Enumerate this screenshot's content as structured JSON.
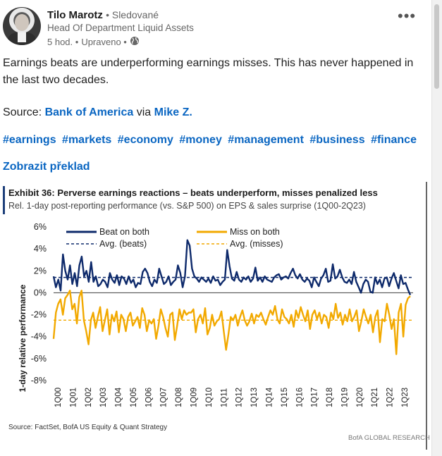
{
  "author": {
    "name": "Tilo Marotz",
    "follow_status": "• Sledované",
    "headline": "Head Of Department Liquid Assets",
    "time": "5 hod. •",
    "edited": "Upraveno •",
    "globe_icon": "globe-icon",
    "more_icon": "more-horizontal-icon"
  },
  "post": {
    "text": "Earnings beats are underperforming earnings misses. This has never happened in the last two decades.",
    "source_prefix": "Source: ",
    "source_link": "Bank of America",
    "via": " via ",
    "via_link": "Mike Z.",
    "hashtags": [
      "#earnings",
      "#markets",
      "#economy",
      "#money",
      "#management",
      "#business",
      "#finance"
    ],
    "translate": "Zobrazit překlad"
  },
  "chart_data": {
    "type": "line",
    "title": "Exhibit 36: Perverse earnings reactions – beats underperform, misses penalized less",
    "subtitle": "Rel. 1-day post-reporting performance (vs. S&P 500) on EPS & sales surprise (1Q00-2Q23)",
    "ylabel": "1-day relative performance",
    "ylim": [
      -8,
      6
    ],
    "yticks": [
      "6%",
      "4%",
      "2%",
      "0%",
      "-2%",
      "-4%",
      "-6%",
      "-8%"
    ],
    "xticks": [
      "1Q00",
      "1Q01",
      "1Q02",
      "1Q03",
      "1Q04",
      "1Q05",
      "1Q06",
      "1Q07",
      "1Q08",
      "1Q09",
      "1Q10",
      "1Q11",
      "1Q12",
      "1Q13",
      "1Q14",
      "1Q15",
      "1Q16",
      "1Q17",
      "1Q18",
      "1Q19",
      "1Q20",
      "1Q21",
      "1Q22",
      "1Q23"
    ],
    "legend": [
      "Beat on both",
      "Avg. (beats)",
      "Miss on both",
      "Avg. (misses)"
    ],
    "colors": {
      "beat": "#0e2a6b",
      "miss": "#f2a900"
    },
    "avg_beats": 1.4,
    "avg_misses": -2.5,
    "series": [
      {
        "name": "Beat on both",
        "values": [
          1.5,
          0.5,
          1.2,
          0.2,
          3.5,
          2.0,
          1.2,
          2.5,
          0.8,
          1.8,
          0.6,
          2.5,
          3.3,
          1.5,
          2.0,
          1.0,
          2.8,
          1.0,
          1.5,
          0.6,
          0.8,
          1.2,
          1.0,
          0.5,
          1.8,
          1.2,
          0.9,
          1.6,
          0.7,
          1.5,
          1.3,
          0.8,
          1.5,
          0.9,
          1.2,
          0.5,
          0.9,
          0.8,
          1.9,
          2.2,
          1.8,
          1.0,
          0.6,
          1.2,
          0.9,
          2.2,
          1.5,
          0.8,
          1.0,
          1.5,
          0.7,
          1.0,
          1.2,
          2.5,
          1.8,
          0.5,
          1.5,
          4.8,
          4.3,
          2.2,
          1.5,
          1.3,
          1.0,
          1.4,
          1.2,
          1.0,
          1.3,
          0.9,
          1.5,
          1.1,
          1.2,
          0.7,
          1.0,
          1.2,
          3.9,
          2.4,
          1.3,
          1.1,
          1.9,
          1.2,
          1.0,
          1.4,
          1.2,
          1.5,
          1.0,
          1.3,
          2.3,
          1.1,
          1.4,
          1.0,
          1.5,
          1.2,
          1.1,
          1.0,
          1.4,
          1.6,
          1.7,
          1.2,
          1.4,
          1.5,
          1.3,
          1.8,
          2.2,
          1.6,
          1.3,
          1.7,
          1.2,
          1.0,
          1.3,
          1.1,
          0.5,
          1.4,
          1.0,
          0.6,
          1.3,
          1.6,
          2.2,
          1.0,
          1.1,
          2.6,
          1.3,
          1.5,
          2.1,
          1.4,
          1.0,
          0.9,
          1.2,
          0.8,
          1.9,
          1.0,
          0.5,
          0.0,
          0.8,
          1.2,
          1.0,
          0.1,
          0.0,
          1.4,
          0.8,
          1.2,
          0.5,
          1.3,
          1.4,
          0.6,
          1.3,
          1.8,
          1.1,
          0.4,
          1.6,
          0.8,
          0.9,
          0.3,
          -0.2
        ]
      },
      {
        "name": "Miss on both",
        "values": [
          -4.2,
          -1.8,
          -1.0,
          -0.6,
          -2.0,
          -0.5,
          -0.2,
          0.2,
          -1.5,
          -1.0,
          -2.8,
          -0.4,
          0.2,
          -2.5,
          -3.5,
          -4.7,
          -2.5,
          -1.8,
          -3.2,
          -2.2,
          -1.3,
          -3.5,
          -2.5,
          -1.5,
          -3.8,
          -2.0,
          -2.6,
          -1.7,
          -3.6,
          -2.0,
          -2.4,
          -3.5,
          -2.2,
          -1.8,
          -3.0,
          -2.6,
          -2.2,
          -3.2,
          -1.4,
          -2.0,
          -3.5,
          -2.5,
          -2.8,
          -2.4,
          -4.2,
          -3.0,
          -1.5,
          -2.2,
          -3.2,
          -4.0,
          -2.0,
          -1.8,
          -4.3,
          -3.0,
          -1.5,
          -2.4,
          -1.6,
          -2.0,
          -1.8,
          -1.8,
          -1.5,
          -3.6,
          -2.4,
          -2.0,
          -2.8,
          -1.4,
          -3.8,
          -3.2,
          -2.0,
          -3.0,
          -2.6,
          -2.4,
          -1.7,
          -3.5,
          -5.2,
          -3.8,
          -2.2,
          -2.5,
          -2.0,
          -3.0,
          -2.2,
          -1.6,
          -2.5,
          -3.0,
          -2.6,
          -1.9,
          -2.8,
          -2.0,
          -2.2,
          -1.8,
          -2.4,
          -2.9,
          -2.2,
          -1.6,
          -2.0,
          -1.2,
          -2.4,
          -2.8,
          -1.5,
          -2.2,
          -2.4,
          -2.8,
          -2.0,
          -3.1,
          -1.6,
          -2.3,
          -1.3,
          -2.0,
          -2.6,
          -1.6,
          -3.3,
          -2.0,
          -1.6,
          -2.4,
          -1.8,
          -2.8,
          -2.0,
          -2.2,
          -3.2,
          -1.8,
          -2.4,
          -1.0,
          -2.3,
          -1.8,
          -2.9,
          -2.0,
          -2.6,
          -1.5,
          -2.6,
          -2.2,
          -1.6,
          -3.5,
          -2.6,
          -1.5,
          -2.2,
          -2.8,
          -2.0,
          -3.6,
          -2.2,
          -1.6,
          -4.5,
          -2.4,
          -2.6,
          -1.0,
          -2.0,
          -3.3,
          -2.4,
          -5.6,
          -1.8,
          -1.0,
          -4.0,
          -1.1,
          -0.5,
          -0.3
        ]
      }
    ],
    "source": "Source:  FactSet, BofA US Equity & Quant Strategy",
    "watermark": "BofA GLOBAL RESEARCH"
  }
}
